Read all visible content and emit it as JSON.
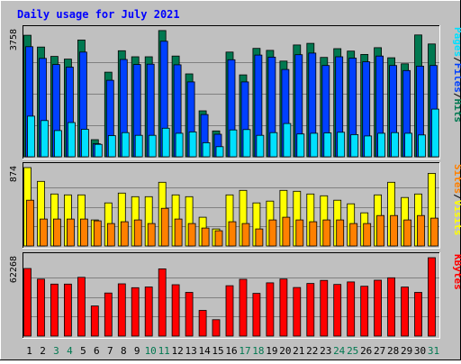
{
  "colors": {
    "frame": "#c0c0c0",
    "panel": "#c0c0c0",
    "title": "#0000ff",
    "hits": "#007850",
    "files": "#0040ff",
    "pages": "#00e0ff",
    "visits": "#ffff00",
    "sites": "#ff8000",
    "kbytes": "#ff0000",
    "weekday": "#000000",
    "weekend": "#007850"
  },
  "chart_data": {
    "type": "bar",
    "title": "Daily usage for July 2021",
    "categories": [
      "1",
      "2",
      "3",
      "4",
      "5",
      "6",
      "7",
      "8",
      "9",
      "10",
      "11",
      "12",
      "13",
      "14",
      "15",
      "16",
      "17",
      "18",
      "19",
      "20",
      "21",
      "22",
      "23",
      "24",
      "25",
      "26",
      "27",
      "28",
      "29",
      "30",
      "31"
    ],
    "weekend_days": [
      "3",
      "4",
      "10",
      "11",
      "17",
      "18",
      "24",
      "25",
      "31"
    ],
    "panels": [
      {
        "id": "hits",
        "ymax": 3758,
        "ymax_label": "3758",
        "legend": [
          {
            "name": "Hits",
            "color": "#007850"
          },
          {
            "name": "Files",
            "color": "#0040ff"
          },
          {
            "name": "Pages",
            "color": "#00e0ff"
          }
        ],
        "separator": "/",
        "series": [
          {
            "name": "Hits",
            "color": "#007850",
            "values": [
              3620,
              3270,
              2990,
              2910,
              3480,
              510,
              2520,
              3160,
              2980,
              2980,
              3760,
              3000,
              2470,
              1370,
              770,
              3120,
              2440,
              3230,
              3170,
              2850,
              3330,
              3380,
              2960,
              3220,
              3150,
              3050,
              3250,
              2950,
              2770,
              3630,
              3360
            ]
          },
          {
            "name": "Files",
            "color": "#0040ff",
            "values": [
              3280,
              2930,
              2750,
              2670,
              3120,
              390,
              2280,
              2900,
              2750,
              2760,
              3440,
              2740,
              2230,
              1260,
              670,
              2890,
              2230,
              3030,
              2970,
              2600,
              3040,
              3090,
              2720,
              2980,
              2940,
              2830,
              3000,
              2720,
              2570,
              2700,
              2720
            ]
          },
          {
            "name": "Pages",
            "color": "#00e0ff",
            "values": [
              1210,
              1080,
              780,
              1020,
              820,
              370,
              630,
              720,
              640,
              640,
              850,
              700,
              740,
              420,
              300,
              800,
              810,
              640,
              720,
              990,
              680,
              700,
              710,
              730,
              660,
              620,
              700,
              720,
              700,
              650,
              1420
            ]
          }
        ]
      },
      {
        "id": "visits",
        "ymax": 874,
        "ymax_label": "874",
        "legend": [
          {
            "name": "Visits",
            "color": "#ffff00"
          },
          {
            "name": "Sites",
            "color": "#ff8000"
          }
        ],
        "separator": "/",
        "series": [
          {
            "name": "Visits",
            "color": "#ffff00",
            "values": [
              874,
              720,
              580,
              570,
              570,
              290,
              480,
              590,
              550,
              550,
              710,
              570,
              550,
              320,
              190,
              570,
              620,
              480,
              500,
              620,
              610,
              580,
              560,
              510,
              470,
              370,
              570,
              710,
              540,
              580,
              810
            ]
          },
          {
            "name": "Sites",
            "color": "#ff8000",
            "values": [
              510,
              300,
              300,
              300,
              300,
              280,
              250,
              270,
              290,
              250,
              420,
              300,
              250,
              200,
              170,
              270,
              250,
              190,
              290,
              320,
              290,
              270,
              290,
              290,
              250,
              250,
              340,
              340,
              290,
              340,
              310
            ]
          }
        ]
      },
      {
        "id": "kbytes",
        "ymax": 62268,
        "ymax_label": "62268",
        "legend": [
          {
            "name": "KBytes",
            "color": "#ff0000"
          }
        ],
        "separator": "",
        "series": [
          {
            "name": "KBytes",
            "color": "#ff0000",
            "values": [
              53700,
              45200,
              41300,
              41300,
              46700,
              23900,
              34200,
              41500,
              38400,
              39000,
              53400,
              40800,
              34700,
              20400,
              13000,
              40000,
              45100,
              33900,
              42300,
              45300,
              38600,
              41800,
              44200,
              41000,
              43000,
              39600,
              44400,
              46300,
              38900,
              34700,
              62268
            ]
          }
        ]
      }
    ]
  }
}
